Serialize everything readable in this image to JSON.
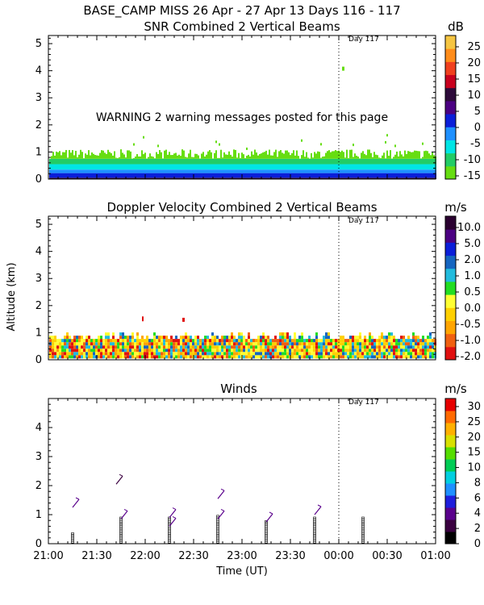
{
  "header": "BASE_CAMP MISS  26 Apr - 27 Apr 13 Days 116 - 117",
  "day_marker": "Day 117",
  "warning": "WARNING  2 warning messages posted for this page",
  "ylabel": "Altitude (km)",
  "xlabel": "Time (UT)",
  "x_ticks": [
    "21:00",
    "21:30",
    "22:00",
    "22:30",
    "23:00",
    "23:30",
    "00:00",
    "00:30",
    "01:00"
  ],
  "colors": {
    "axis": "#000000",
    "snr": [
      "#66dd11",
      "#22cc66",
      "#00e5e5",
      "#1e90ff",
      "#0b1ed8",
      "#4b0082",
      "#2d0a3a",
      "#c8001e",
      "#f0401e",
      "#ff8c1a",
      "#f5c542"
    ],
    "vel": [
      "#e01010",
      "#f06010",
      "#ffa500",
      "#ffd000",
      "#ffff33",
      "#22dd22",
      "#22bbdd",
      "#1565c0",
      "#0b1ed8",
      "#4b0082",
      "#2a0030"
    ],
    "winds": [
      "#000000",
      "#3a0040",
      "#5a008c",
      "#1e1edc",
      "#1e90ff",
      "#00cfe0",
      "#00cc55",
      "#55dd00",
      "#d8e000",
      "#ffb000",
      "#ff6a00",
      "#e60000"
    ]
  },
  "chart_data": [
    {
      "type": "heatmap",
      "title": "SNR Combined 2 Vertical Beams",
      "units": "dB",
      "xlabel": "Time (UT)",
      "ylabel": "Altitude (km)",
      "xlim": [
        "21:00",
        "01:00"
      ],
      "ylim": [
        0,
        5.3
      ],
      "y_ticks": [
        "0",
        "1",
        "2",
        "3",
        "4",
        "5"
      ],
      "colorbar_ticks": [
        "25",
        "20",
        "15",
        "10",
        "5",
        "0",
        "-5",
        "-10",
        "-15"
      ],
      "colorbar_range": [
        -15,
        30
      ],
      "echo_top_km_approx": 0.9,
      "day_boundary": "00:00"
    },
    {
      "type": "heatmap",
      "title": "Doppler Velocity Combined 2 Vertical Beams",
      "units": "m/s",
      "xlabel": "Time (UT)",
      "ylabel": "Altitude (km)",
      "xlim": [
        "21:00",
        "01:00"
      ],
      "ylim": [
        0,
        5.3
      ],
      "y_ticks": [
        "0",
        "1",
        "2",
        "3",
        "4",
        "5"
      ],
      "colorbar_ticks": [
        "10.0",
        "5.0",
        "2.0",
        "1.0",
        "0.5",
        "0.0",
        "-0.5",
        "-1.0",
        "-2.0"
      ],
      "echo_top_km_approx": 0.9,
      "day_boundary": "00:00"
    },
    {
      "type": "scatter",
      "title": "Winds",
      "units": "m/s",
      "xlabel": "Time (UT)",
      "ylabel": "Altitude (km)",
      "xlim": [
        "21:00",
        "01:00"
      ],
      "ylim": [
        0,
        5
      ],
      "y_ticks": [
        "0",
        "1",
        "2",
        "3",
        "4"
      ],
      "colorbar_ticks": [
        "30",
        "25",
        "20",
        "15",
        "10",
        "8",
        "6",
        "4",
        "2",
        "0"
      ],
      "profile_times": [
        "21:15",
        "21:45",
        "22:15",
        "22:45",
        "23:15",
        "23:45",
        "00:15"
      ],
      "profile_top_km": [
        0.4,
        0.9,
        0.9,
        1.0,
        0.8,
        0.9,
        0.9
      ],
      "barbs": [
        {
          "time": "21:15",
          "alt_km": 1.25,
          "speed_ms": 4
        },
        {
          "time": "21:42",
          "alt_km": 2.05,
          "speed_ms": 2
        },
        {
          "time": "21:45",
          "alt_km": 0.85,
          "speed_ms": 4
        },
        {
          "time": "22:15",
          "alt_km": 0.9,
          "speed_ms": 4
        },
        {
          "time": "22:15",
          "alt_km": 0.6,
          "speed_ms": 4
        },
        {
          "time": "22:45",
          "alt_km": 1.55,
          "speed_ms": 4
        },
        {
          "time": "22:45",
          "alt_km": 0.85,
          "speed_ms": 4
        },
        {
          "time": "23:15",
          "alt_km": 0.75,
          "speed_ms": 4
        },
        {
          "time": "23:45",
          "alt_km": 1.0,
          "speed_ms": 4
        }
      ],
      "day_boundary": "00:00"
    }
  ]
}
